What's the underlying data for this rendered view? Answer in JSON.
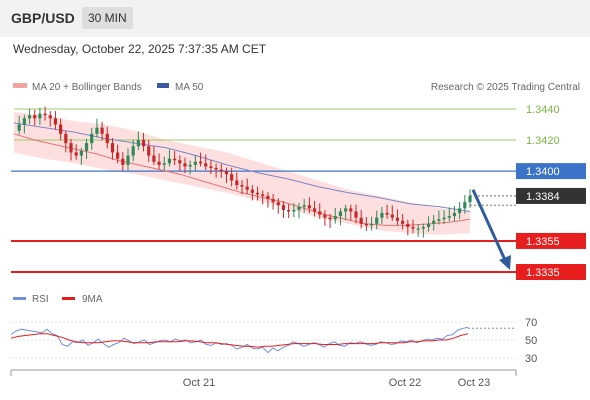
{
  "header": {
    "symbol": "GBP/USD",
    "timeframe": "30 MIN"
  },
  "timestamp": "Wednesday, October 22, 2025 7:37:35 AM CET",
  "legend": {
    "bollinger": "MA 20 + Bollinger Bands",
    "ma50": "MA 50",
    "credit": "Research © 2025 Trading Central"
  },
  "rsi_legend": {
    "rsi": "RSI",
    "ma9": "9MA"
  },
  "levels": [
    {
      "label": "1.3440",
      "value": 1.344,
      "kind": "resistance-minor"
    },
    {
      "label": "1.3420",
      "value": 1.342,
      "kind": "resistance-minor"
    },
    {
      "label": "1.3400",
      "value": 1.34,
      "kind": "pivot"
    },
    {
      "label": "1.3384",
      "value": 1.3384,
      "kind": "last"
    },
    {
      "label": "1.3355",
      "value": 1.3355,
      "kind": "support"
    },
    {
      "label": "1.3335",
      "value": 1.3335,
      "kind": "support"
    }
  ],
  "x_labels": [
    "Oct 21",
    "Oct 22",
    "Oct 23"
  ],
  "rsi_ticks": [
    "70",
    "50",
    "30"
  ],
  "colors": {
    "bull": "#2e8b57",
    "bear": "#c62828",
    "pivot": "#3b73c9",
    "support": "#e61e1e",
    "resistance": "#9ccc65",
    "band": "#fcd4d4",
    "ma50": "#7b86c7",
    "ma20": "#e57373",
    "rsi": "#6f8fdc",
    "arrow": "#2f5c9c",
    "last": "#333333"
  },
  "chart_data": {
    "type": "candlestick",
    "ylim": [
      1.3325,
      1.345
    ],
    "levels": [
      1.344,
      1.342,
      1.34,
      1.3384,
      1.3355,
      1.3335
    ],
    "close_series": [
      1.3426,
      1.343,
      1.3434,
      1.3436,
      1.3434,
      1.3437,
      1.3436,
      1.3434,
      1.343,
      1.3424,
      1.3418,
      1.3412,
      1.341,
      1.3413,
      1.3418,
      1.3424,
      1.3428,
      1.3424,
      1.3418,
      1.3412,
      1.3408,
      1.3404,
      1.341,
      1.3416,
      1.342,
      1.3416,
      1.341,
      1.3406,
      1.3404,
      1.3405,
      1.3408,
      1.3407,
      1.3405,
      1.3403,
      1.3404,
      1.3406,
      1.3405,
      1.3403,
      1.3402,
      1.3401,
      1.34,
      1.3398,
      1.3394,
      1.3391,
      1.339,
      1.3388,
      1.3386,
      1.3385,
      1.3384,
      1.3382,
      1.338,
      1.3378,
      1.3375,
      1.3374,
      1.3375,
      1.3377,
      1.3378,
      1.3376,
      1.3374,
      1.3372,
      1.337,
      1.3369,
      1.3371,
      1.3374,
      1.3376,
      1.3374,
      1.337,
      1.3366,
      1.3365,
      1.3366,
      1.337,
      1.3373,
      1.3372,
      1.337,
      1.3368,
      1.3366,
      1.3364,
      1.3363,
      1.3363,
      1.3364,
      1.3366,
      1.3368,
      1.3369,
      1.337,
      1.3371,
      1.3373,
      1.3376,
      1.338,
      1.3384
    ],
    "ma50": [
      1.3431,
      1.3428,
      1.3425,
      1.3421,
      1.3418,
      1.3415,
      1.341,
      1.3404,
      1.3399,
      1.3395,
      1.339,
      1.3386,
      1.3383,
      1.3379,
      1.3377,
      1.3374
    ],
    "ma20": [
      1.3424,
      1.342,
      1.3417,
      1.3414,
      1.3411,
      1.3407,
      1.3404,
      1.3401,
      1.3398,
      1.3394,
      1.339,
      1.3386,
      1.3383,
      1.338,
      1.3376,
      1.3372,
      1.3369,
      1.3366,
      1.3365,
      1.3365,
      1.3366,
      1.3367,
      1.3369
    ],
    "bollinger_upper": [
      1.3438,
      1.3436,
      1.3432,
      1.343,
      1.3426,
      1.342,
      1.3416,
      1.3412,
      1.3406,
      1.34,
      1.3394,
      1.3388,
      1.3384,
      1.338,
      1.3376,
      1.3374
    ],
    "bollinger_lower": [
      1.3412,
      1.3408,
      1.3405,
      1.3401,
      1.3398,
      1.3394,
      1.339,
      1.3386,
      1.3381,
      1.3376,
      1.337,
      1.3366,
      1.3362,
      1.336,
      1.3359,
      1.336
    ],
    "forecast": {
      "from": 1.3388,
      "to": 1.3335
    },
    "rsi": {
      "ylim": [
        20,
        80
      ],
      "ticks": [
        70,
        50,
        30
      ],
      "values": [
        56,
        60,
        62,
        61,
        60,
        59,
        58,
        62,
        57,
        55,
        45,
        43,
        48,
        47,
        50,
        44,
        47,
        51,
        46,
        42,
        45,
        47,
        52,
        49,
        46,
        48,
        50,
        45,
        47,
        49,
        50,
        48,
        51,
        49,
        50,
        47,
        48,
        50,
        45,
        44,
        47,
        45,
        46,
        44,
        40,
        42,
        45,
        41,
        40,
        42,
        36,
        41,
        38,
        42,
        44,
        48,
        46,
        43,
        45,
        47,
        45,
        42,
        46,
        48,
        44,
        43,
        47,
        46,
        48,
        46,
        44,
        45,
        48,
        47,
        45,
        46,
        49,
        48,
        50,
        47,
        49,
        51,
        50,
        52,
        51,
        55,
        56,
        61,
        63,
        64
      ],
      "ma9": [
        52,
        54,
        55,
        56,
        57,
        57,
        55,
        53,
        50,
        48,
        47,
        47,
        47,
        48,
        49,
        49,
        48,
        47,
        47,
        47,
        48,
        48,
        48,
        48,
        49,
        49,
        48,
        47,
        47,
        46,
        45,
        44,
        43,
        43,
        42,
        43,
        43,
        44,
        45,
        46,
        46,
        46,
        46,
        45,
        45,
        45,
        46,
        46,
        46,
        46,
        46,
        47,
        47,
        47,
        47,
        48,
        48,
        49,
        49,
        50,
        50,
        52,
        55,
        57
      ]
    }
  }
}
